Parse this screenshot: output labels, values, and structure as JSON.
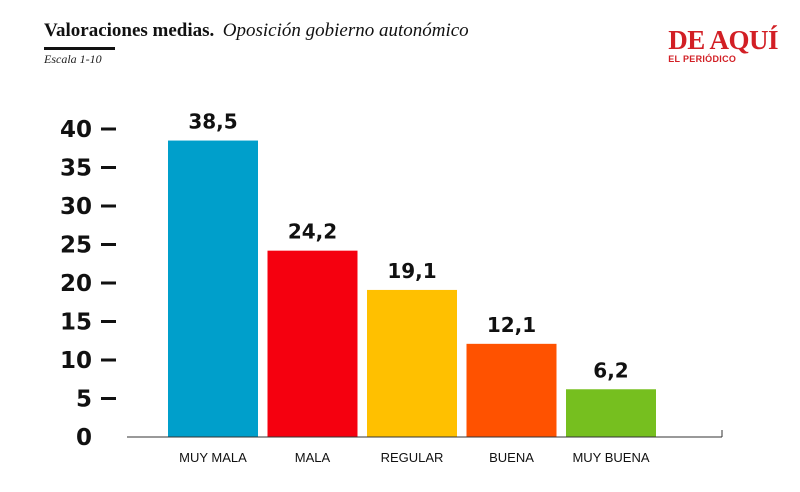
{
  "header": {
    "title": "Valoraciones medias.",
    "subtitle": "Oposición gobierno autonómico",
    "scale_note": "Escala 1-10"
  },
  "logo": {
    "name": "DE AQUÍ",
    "tagline": "EL PERIÓDICO"
  },
  "chart_data": {
    "type": "bar",
    "categories": [
      "MUY MALA",
      "MALA",
      "REGULAR",
      "BUENA",
      "MUY BUENA"
    ],
    "values": [
      38.5,
      24.2,
      19.1,
      12.1,
      6.2
    ],
    "value_labels": [
      "38,5",
      "24,2",
      "19,1",
      "12,1",
      "6,2"
    ],
    "colors": [
      "#009fcb",
      "#f5000f",
      "#ffc000",
      "#ff5200",
      "#76bf1f"
    ],
    "yticks": [
      0,
      5,
      10,
      15,
      20,
      25,
      30,
      35,
      40
    ],
    "ylim": [
      0,
      40
    ],
    "title": "",
    "xlabel": "",
    "ylabel": "",
    "grid": false,
    "legend": "none"
  }
}
